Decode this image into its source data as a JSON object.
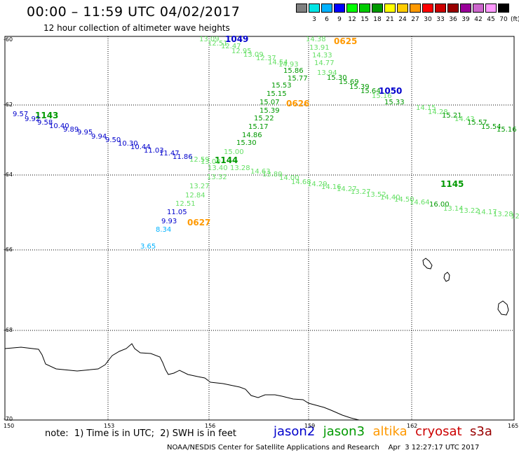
{
  "header": {
    "title": "00:00 – 11:59 UTC 04/02/2017",
    "subtitle": "12 hour collection of altimeter wave heights"
  },
  "color_scale": {
    "unit_label": "(ft)",
    "bins": [
      {
        "label": "",
        "color": "#7f7f7f"
      },
      {
        "label": "3",
        "color": "#00e5e5"
      },
      {
        "label": "6",
        "color": "#00b2ff"
      },
      {
        "label": "9",
        "color": "#0000ff"
      },
      {
        "label": "12",
        "color": "#00ff00"
      },
      {
        "label": "15",
        "color": "#00cc00"
      },
      {
        "label": "18",
        "color": "#009900"
      },
      {
        "label": "21",
        "color": "#ffff00"
      },
      {
        "label": "24",
        "color": "#ffcc00"
      },
      {
        "label": "27",
        "color": "#ff9900"
      },
      {
        "label": "30",
        "color": "#ff0000"
      },
      {
        "label": "33",
        "color": "#cc0000"
      },
      {
        "label": "36",
        "color": "#990000"
      },
      {
        "label": "39",
        "color": "#990099"
      },
      {
        "label": "42",
        "color": "#cc66cc"
      },
      {
        "label": "45",
        "color": "#ff99ff"
      },
      {
        "label": "70",
        "color": "#000000"
      }
    ]
  },
  "map": {
    "lon_labels": [
      "150",
      "153",
      "156",
      "159",
      "162",
      "165"
    ],
    "lat_labels": [
      "-60",
      "-62",
      "-64",
      "-66",
      "-68",
      "-70"
    ],
    "satellite_colors": {
      "jason2": "#0000cc",
      "jason3": "#009900",
      "jason3_light": "#66e066",
      "altika": "#ff9900",
      "cyan": "#00b2ff"
    },
    "track_labels": [
      "1049",
      "0625",
      "1050",
      "0626",
      "1143",
      "1144",
      "1145",
      "0627"
    ],
    "observations": [
      {
        "value": "13.09",
        "color": "#66e066"
      },
      {
        "value": "12.51",
        "color": "#66e066"
      },
      {
        "value": "12.47",
        "color": "#66e066"
      },
      {
        "value": "12.95",
        "color": "#66e066"
      },
      {
        "value": "13.09",
        "color": "#66e066"
      },
      {
        "value": "12.37",
        "color": "#66e066"
      },
      {
        "value": "14.54",
        "color": "#66e066"
      },
      {
        "value": "14.93",
        "color": "#66e066"
      },
      {
        "value": "15.86",
        "color": "#009900"
      },
      {
        "value": "15.77",
        "color": "#009900"
      },
      {
        "value": "14.38",
        "color": "#66e066"
      },
      {
        "value": "13.91",
        "color": "#66e066"
      },
      {
        "value": "14.33",
        "color": "#66e066"
      },
      {
        "value": "14.77",
        "color": "#66e066"
      },
      {
        "value": "13.94",
        "color": "#66e066"
      },
      {
        "value": "15.30",
        "color": "#009900"
      },
      {
        "value": "15.69",
        "color": "#009900"
      },
      {
        "value": "15.39",
        "color": "#009900"
      },
      {
        "value": "15.64",
        "color": "#009900"
      },
      {
        "value": "15.16",
        "color": "#66e066"
      },
      {
        "value": "15.33",
        "color": "#009900"
      },
      {
        "value": "14.15",
        "color": "#66e066"
      },
      {
        "value": "14.28",
        "color": "#66e066"
      },
      {
        "value": "15.21",
        "color": "#009900"
      },
      {
        "value": "14.43",
        "color": "#66e066"
      },
      {
        "value": "15.57",
        "color": "#009900"
      },
      {
        "value": "15.54",
        "color": "#009900"
      },
      {
        "value": "15.16",
        "color": "#009900"
      },
      {
        "value": "15.53",
        "color": "#009900"
      },
      {
        "value": "15.15",
        "color": "#009900"
      },
      {
        "value": "15.07",
        "color": "#009900"
      },
      {
        "value": "15.39",
        "color": "#009900"
      },
      {
        "value": "15.22",
        "color": "#009900"
      },
      {
        "value": "15.17",
        "color": "#009900"
      },
      {
        "value": "14.86",
        "color": "#009900"
      },
      {
        "value": "15.30",
        "color": "#009900"
      },
      {
        "value": "15.00",
        "color": "#66e066"
      },
      {
        "value": "12.59",
        "color": "#66e066"
      },
      {
        "value": "13.00",
        "color": "#66e066"
      },
      {
        "value": "13.40",
        "color": "#66e066"
      },
      {
        "value": "13.28",
        "color": "#66e066"
      },
      {
        "value": "14.63",
        "color": "#66e066"
      },
      {
        "value": "13.32",
        "color": "#66e066"
      },
      {
        "value": "13.89",
        "color": "#66e066"
      },
      {
        "value": "14.00",
        "color": "#66e066"
      },
      {
        "value": "14.68",
        "color": "#66e066"
      },
      {
        "value": "14.29",
        "color": "#66e066"
      },
      {
        "value": "14.16",
        "color": "#66e066"
      },
      {
        "value": "14.27",
        "color": "#66e066"
      },
      {
        "value": "13.27",
        "color": "#66e066"
      },
      {
        "value": "13.52",
        "color": "#66e066"
      },
      {
        "value": "14.40",
        "color": "#66e066"
      },
      {
        "value": "14.50",
        "color": "#66e066"
      },
      {
        "value": "14.64",
        "color": "#66e066"
      },
      {
        "value": "16.00",
        "color": "#009900"
      },
      {
        "value": "13.14",
        "color": "#66e066"
      },
      {
        "value": "13.22",
        "color": "#66e066"
      },
      {
        "value": "14.17",
        "color": "#66e066"
      },
      {
        "value": "13.28",
        "color": "#66e066"
      },
      {
        "value": "12",
        "color": "#66e066"
      },
      {
        "value": "13.27",
        "color": "#66e066"
      },
      {
        "value": "12.84",
        "color": "#66e066"
      },
      {
        "value": "12.51",
        "color": "#66e066"
      },
      {
        "value": "11.05",
        "color": "#0000cc"
      },
      {
        "value": "9.93",
        "color": "#0000cc"
      },
      {
        "value": "8.34",
        "color": "#00b2ff"
      },
      {
        "value": "3.65",
        "color": "#00b2ff"
      },
      {
        "value": "9.57",
        "color": "#0000cc"
      },
      {
        "value": "9.92",
        "color": "#0000cc"
      },
      {
        "value": "9.58",
        "color": "#0000cc"
      },
      {
        "value": "10.40",
        "color": "#0000cc"
      },
      {
        "value": "9.89",
        "color": "#0000cc"
      },
      {
        "value": "9.95",
        "color": "#0000cc"
      },
      {
        "value": "9.94",
        "color": "#0000cc"
      },
      {
        "value": "9.50",
        "color": "#0000cc"
      },
      {
        "value": "10.30",
        "color": "#0000cc"
      },
      {
        "value": "10.44",
        "color": "#0000cc"
      },
      {
        "value": "11.03",
        "color": "#0000cc"
      },
      {
        "value": "11.47",
        "color": "#0000cc"
      },
      {
        "value": "11.86",
        "color": "#0000cc"
      }
    ]
  },
  "footer": {
    "note": "note:  1) Time is in UTC;  2) SWH is in feet",
    "satellites": [
      {
        "name": "jason2",
        "color": "#0000cc"
      },
      {
        "name": "jason3",
        "color": "#009900"
      },
      {
        "name": "altika",
        "color": "#ff9900"
      },
      {
        "name": "cryosat",
        "color": "#cc0000"
      },
      {
        "name": "s3a",
        "color": "#990000"
      }
    ],
    "credit": "NOAA/NESDIS Center for Satellite Applications and Research    Apr  3 12:27:17 UTC 2017"
  }
}
